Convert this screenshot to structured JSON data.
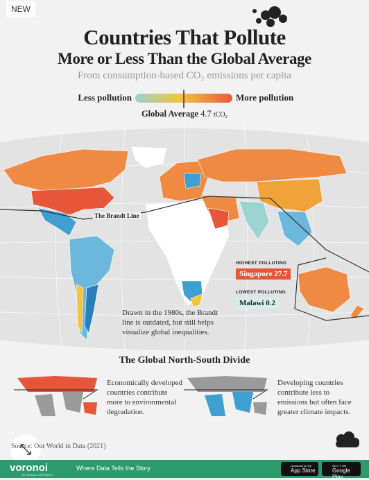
{
  "badge": "NEW",
  "header": {
    "title_line1": "Countries That Pollute",
    "title_line2": "More or Less Than the Global Average",
    "subtitle": "From consumption-based CO₂ emissions per capita"
  },
  "legend": {
    "low": "Less pollution",
    "high": "More pollution",
    "average_label": "Global Average",
    "average_value": 4.7,
    "average_unit": "tCO₂"
  },
  "map": {
    "brandt_line_label": "The Brandt Line",
    "highest": {
      "tag": "HIGHEST POLLUTING",
      "country": "Singapore",
      "value": 27.7
    },
    "lowest": {
      "tag": "LOWEST POLLUTING",
      "country": "Malawi",
      "value": 0.2
    },
    "annotation": "Drawn in the 1980s, the Brandt line is outdated, but still helps visualize global inequalities."
  },
  "divide": {
    "title": "The Global North-South Divide",
    "north": "Economically developed countries contribute more to environmental degradation.",
    "south": "Developing countries contribute less to emissions but often face greater climate impacts."
  },
  "source": "Source: Our World in Data (2021)",
  "footer": {
    "brand": "voronoi",
    "byline": "BY VISUAL CAPITALIST",
    "tagline": "Where Data Tells the Story",
    "app_store_small": "Download on the",
    "app_store": "App Store",
    "google_small": "GET IT ON",
    "google": "Google Play"
  }
}
